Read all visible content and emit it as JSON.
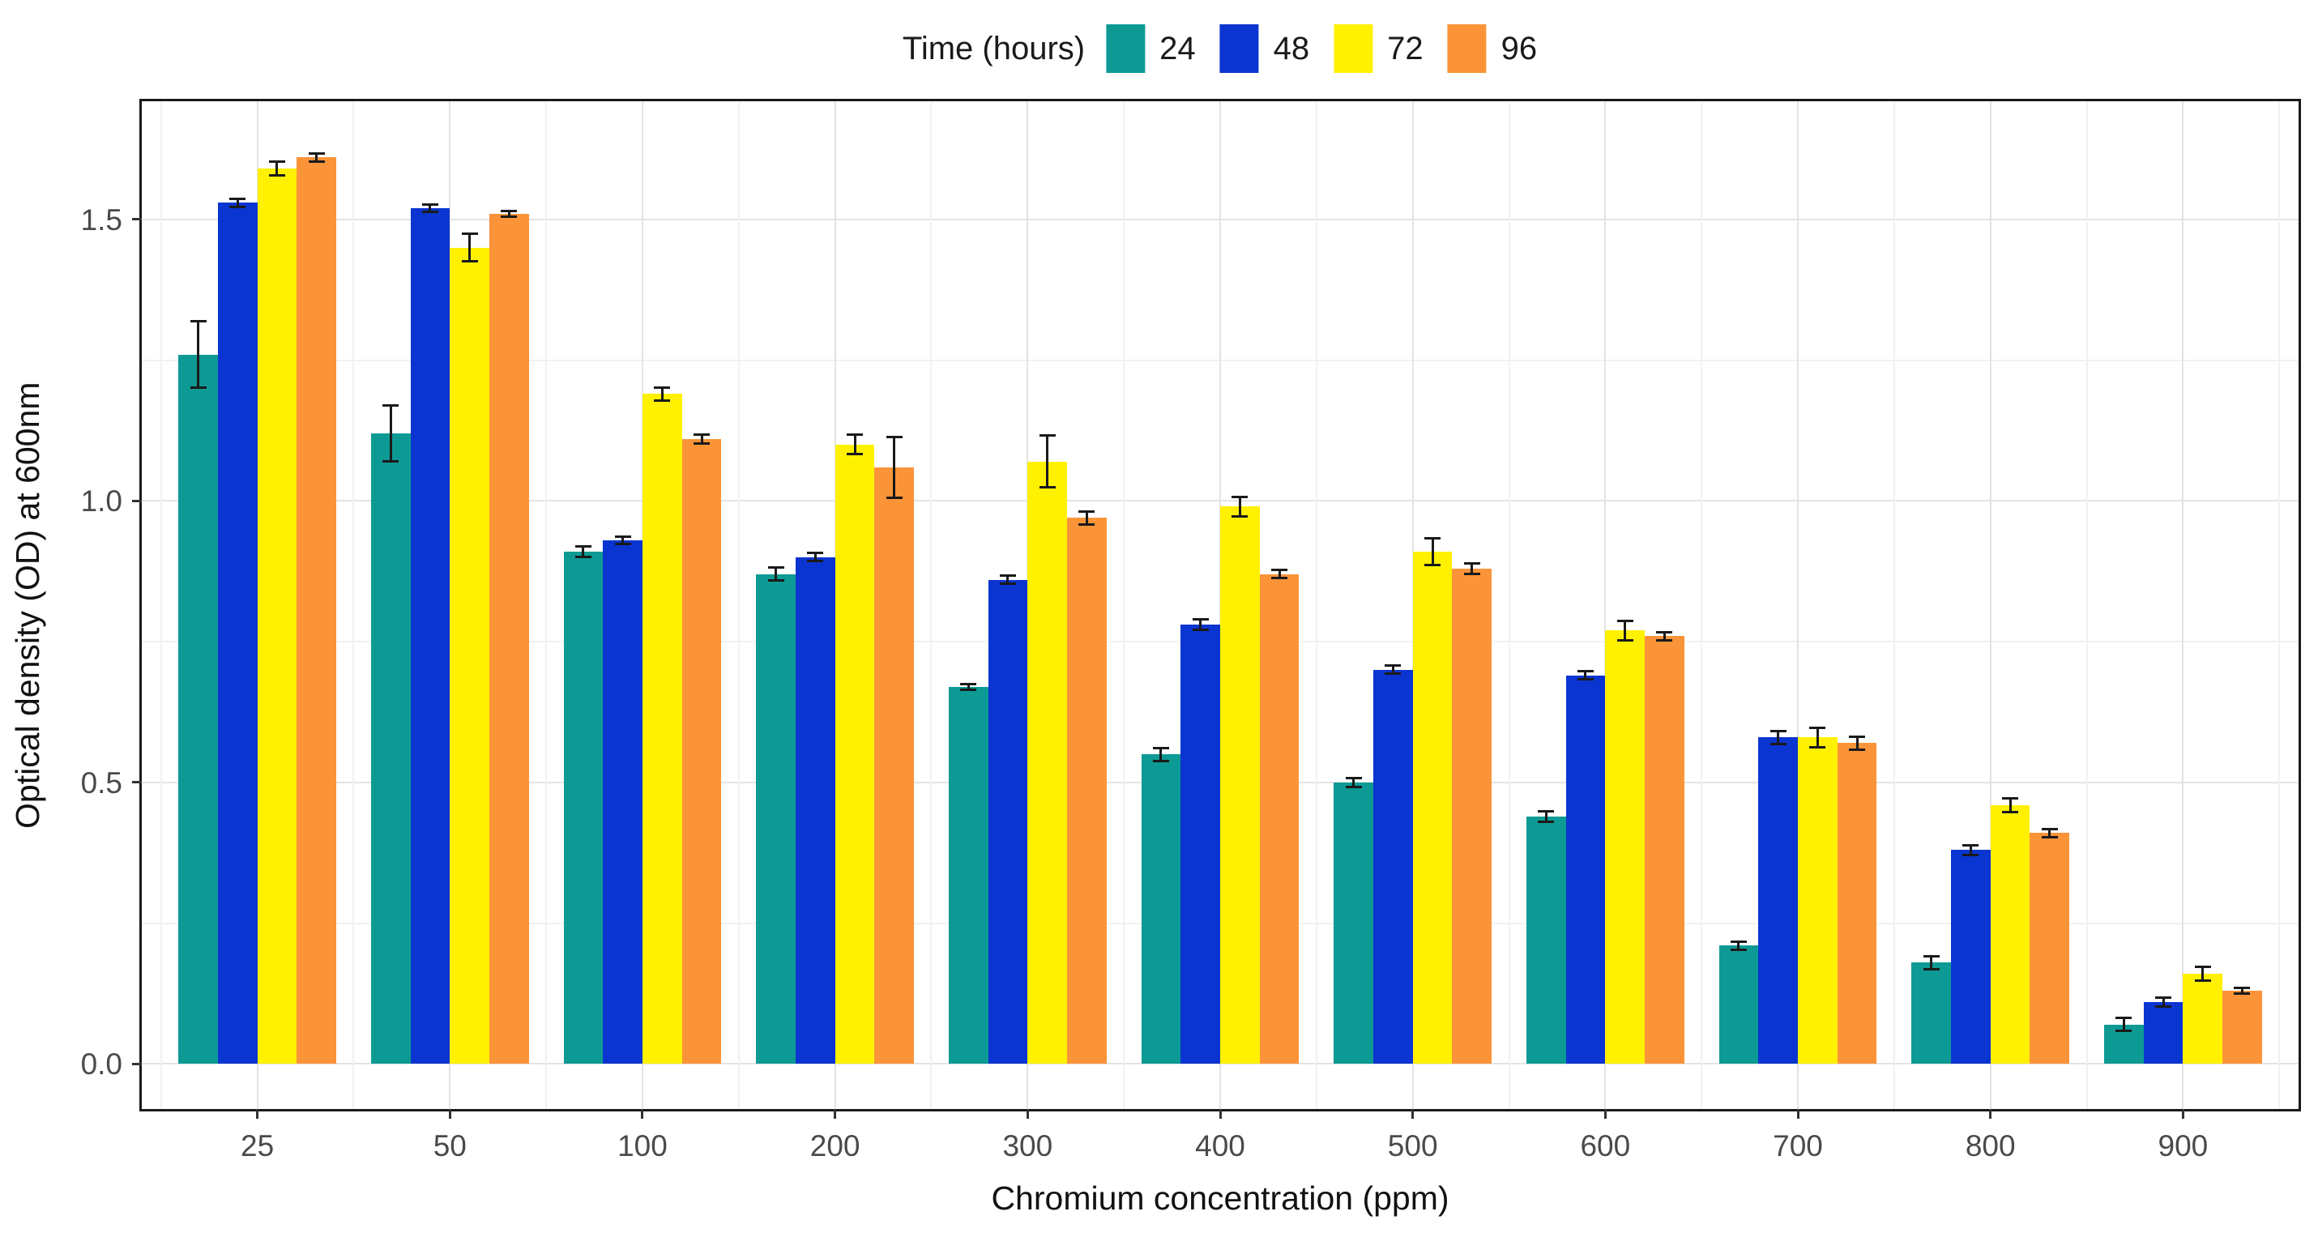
{
  "page": {
    "background": "#ffffff"
  },
  "legend": {
    "title": "Time (hours)",
    "position": "top"
  },
  "axes": {
    "x_title": "Chromium concentration (ppm)",
    "y_title": "Optical density (OD) at 600nm"
  },
  "colors": {
    "series_24": "#0d9a94",
    "series_48": "#0b35d0",
    "series_72": "#fff100",
    "series_96": "#fb9438",
    "panel_border": "#1a1a1a",
    "grid_major": "#e3e3e3",
    "grid_minor": "#f1f1f1",
    "error_bar": "#1a1a1a",
    "tick_text": "#4a4a4a"
  },
  "chart_data": {
    "type": "bar",
    "xlabel": "Chromium concentration (ppm)",
    "ylabel": "Optical density (OD) at 600nm",
    "legend_title": "Time (hours)",
    "legend_position": "top",
    "grid": true,
    "categories": [
      "25",
      "50",
      "100",
      "200",
      "300",
      "400",
      "500",
      "600",
      "700",
      "800",
      "900"
    ],
    "series": [
      {
        "name": "24",
        "color": "#0d9a94",
        "values": [
          1.26,
          1.12,
          0.91,
          0.87,
          0.67,
          0.55,
          0.5,
          0.44,
          0.21,
          0.18,
          0.07
        ],
        "errors": [
          0.06,
          0.05,
          0.01,
          0.012,
          0.006,
          0.012,
          0.009,
          0.01,
          0.008,
          0.012,
          0.012
        ]
      },
      {
        "name": "48",
        "color": "#0b35d0",
        "values": [
          1.53,
          1.52,
          0.93,
          0.9,
          0.86,
          0.78,
          0.7,
          0.69,
          0.58,
          0.38,
          0.11
        ],
        "errors": [
          0.008,
          0.007,
          0.007,
          0.008,
          0.008,
          0.01,
          0.008,
          0.008,
          0.012,
          0.009,
          0.008
        ]
      },
      {
        "name": "72",
        "color": "#fff100",
        "values": [
          1.59,
          1.45,
          1.19,
          1.1,
          1.07,
          0.99,
          0.91,
          0.77,
          0.58,
          0.46,
          0.16
        ],
        "errors": [
          0.013,
          0.025,
          0.012,
          0.018,
          0.047,
          0.018,
          0.024,
          0.018,
          0.018,
          0.013,
          0.013
        ]
      },
      {
        "name": "96",
        "color": "#fb9438",
        "values": [
          1.61,
          1.51,
          1.11,
          1.06,
          0.97,
          0.87,
          0.88,
          0.76,
          0.57,
          0.41,
          0.13
        ],
        "errors": [
          0.008,
          0.006,
          0.008,
          0.055,
          0.012,
          0.008,
          0.01,
          0.008,
          0.012,
          0.008,
          0.006
        ]
      }
    ],
    "y_ticks": [
      {
        "value": 0.0,
        "label": "0.0"
      },
      {
        "value": 0.5,
        "label": "0.5"
      },
      {
        "value": 1.0,
        "label": "1.0"
      },
      {
        "value": 1.5,
        "label": "1.5"
      }
    ],
    "y_minor": [
      0.25,
      0.75,
      1.25
    ],
    "ylim": [
      -0.08,
      1.71
    ]
  }
}
